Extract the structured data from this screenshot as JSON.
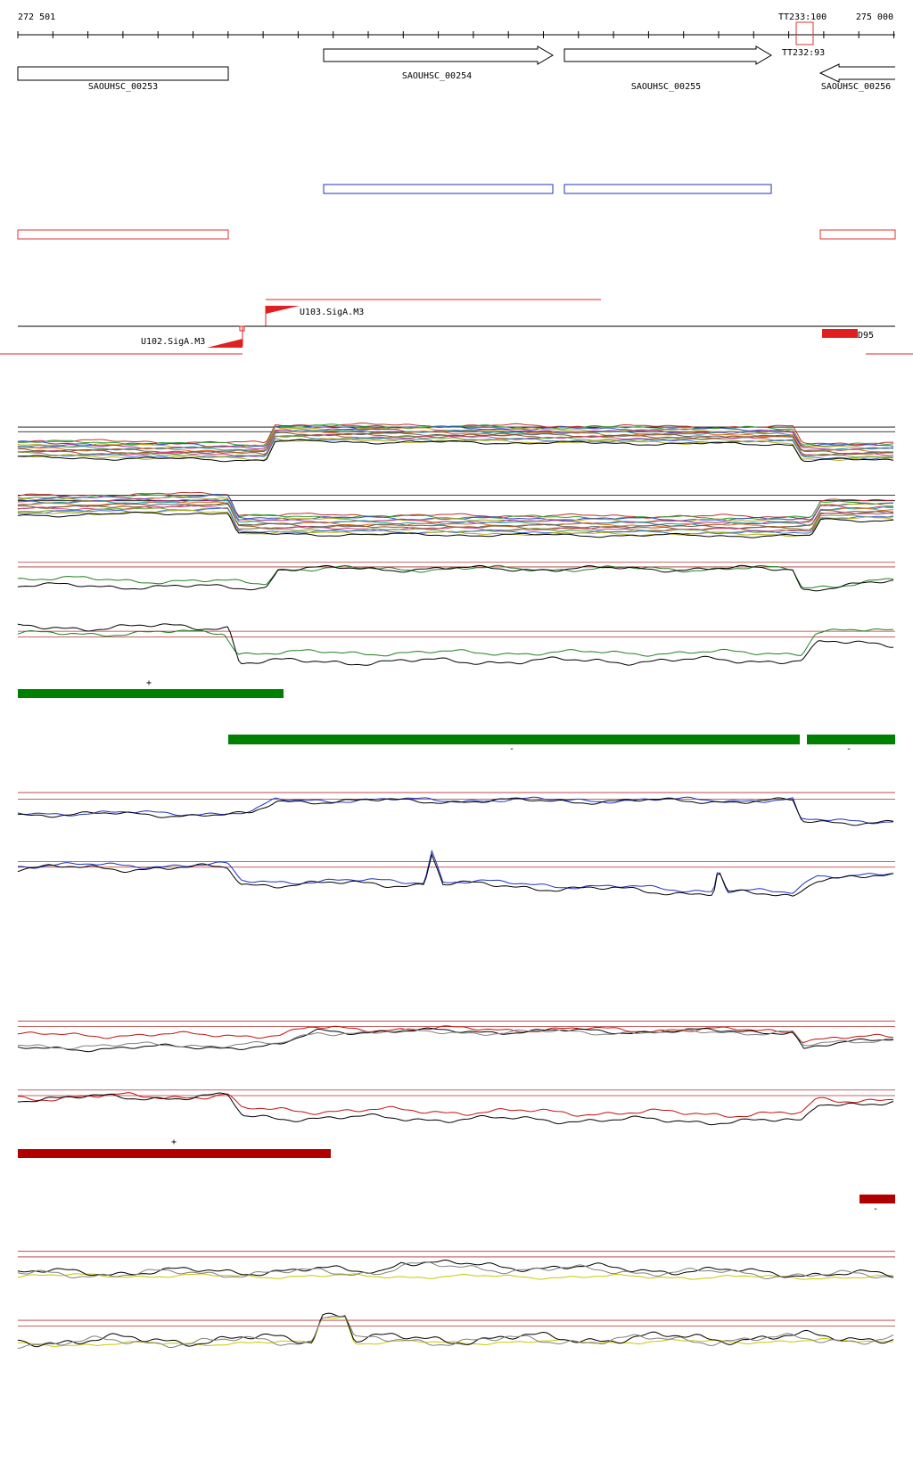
{
  "ruler": {
    "start": "272 501",
    "end": "275 000"
  },
  "terminators": [
    "TT233:100",
    "TT232:93"
  ],
  "genes": [
    "SAOUHSC_00253",
    "SAOUHSC_00254",
    "SAOUHSC_00255",
    "SAOUHSC_00256"
  ],
  "promoters": [
    "U103.SigA.M3",
    "U102.SigA.M3"
  ],
  "feature": "D95",
  "strands": {
    "green": [
      "+",
      "-",
      "-"
    ],
    "red": [
      "+",
      "-"
    ]
  }
}
